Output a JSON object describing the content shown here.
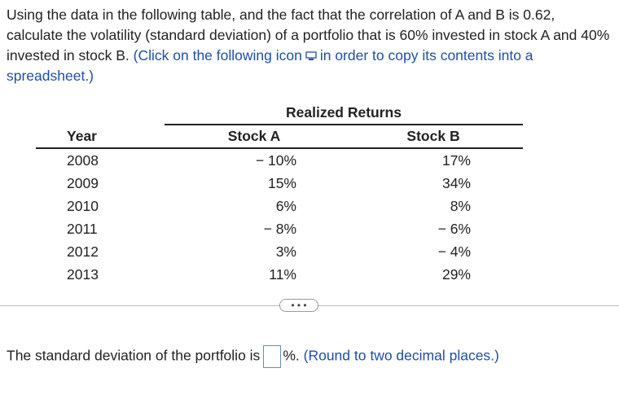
{
  "question": {
    "text_part1": "Using the data in the following table, and the fact that the correlation of A and B is 0.62, calculate the volatility (standard deviation) of a portfolio that is 60% invested in stock A and 40% invested in stock B.",
    "link_part1": "(Click on the following icon",
    "link_part2": "in order to copy its contents into a spreadsheet.)"
  },
  "table": {
    "group_header": "Realized Returns",
    "col_year": "Year",
    "col_a": "Stock A",
    "col_b": "Stock B",
    "rows": [
      {
        "year": "2008",
        "a": "− 10%",
        "b": "17%"
      },
      {
        "year": "2009",
        "a": "15%",
        "b": "34%"
      },
      {
        "year": "2010",
        "a": "6%",
        "b": "8%"
      },
      {
        "year": "2011",
        "a": "− 8%",
        "b": "− 6%"
      },
      {
        "year": "2012",
        "a": "3%",
        "b": "− 4%"
      },
      {
        "year": "2013",
        "a": "11%",
        "b": "29%"
      }
    ]
  },
  "more_button_label": "• • •",
  "answer": {
    "prefix": "The standard deviation of the portfolio is",
    "value": "",
    "suffix": "%.",
    "hint": "(Round to two decimal places.)"
  },
  "icons": {
    "copy": "copy-spreadsheet-icon"
  },
  "colors": {
    "link_blue": "#1f4fa8",
    "input_border": "#6a88c9"
  }
}
